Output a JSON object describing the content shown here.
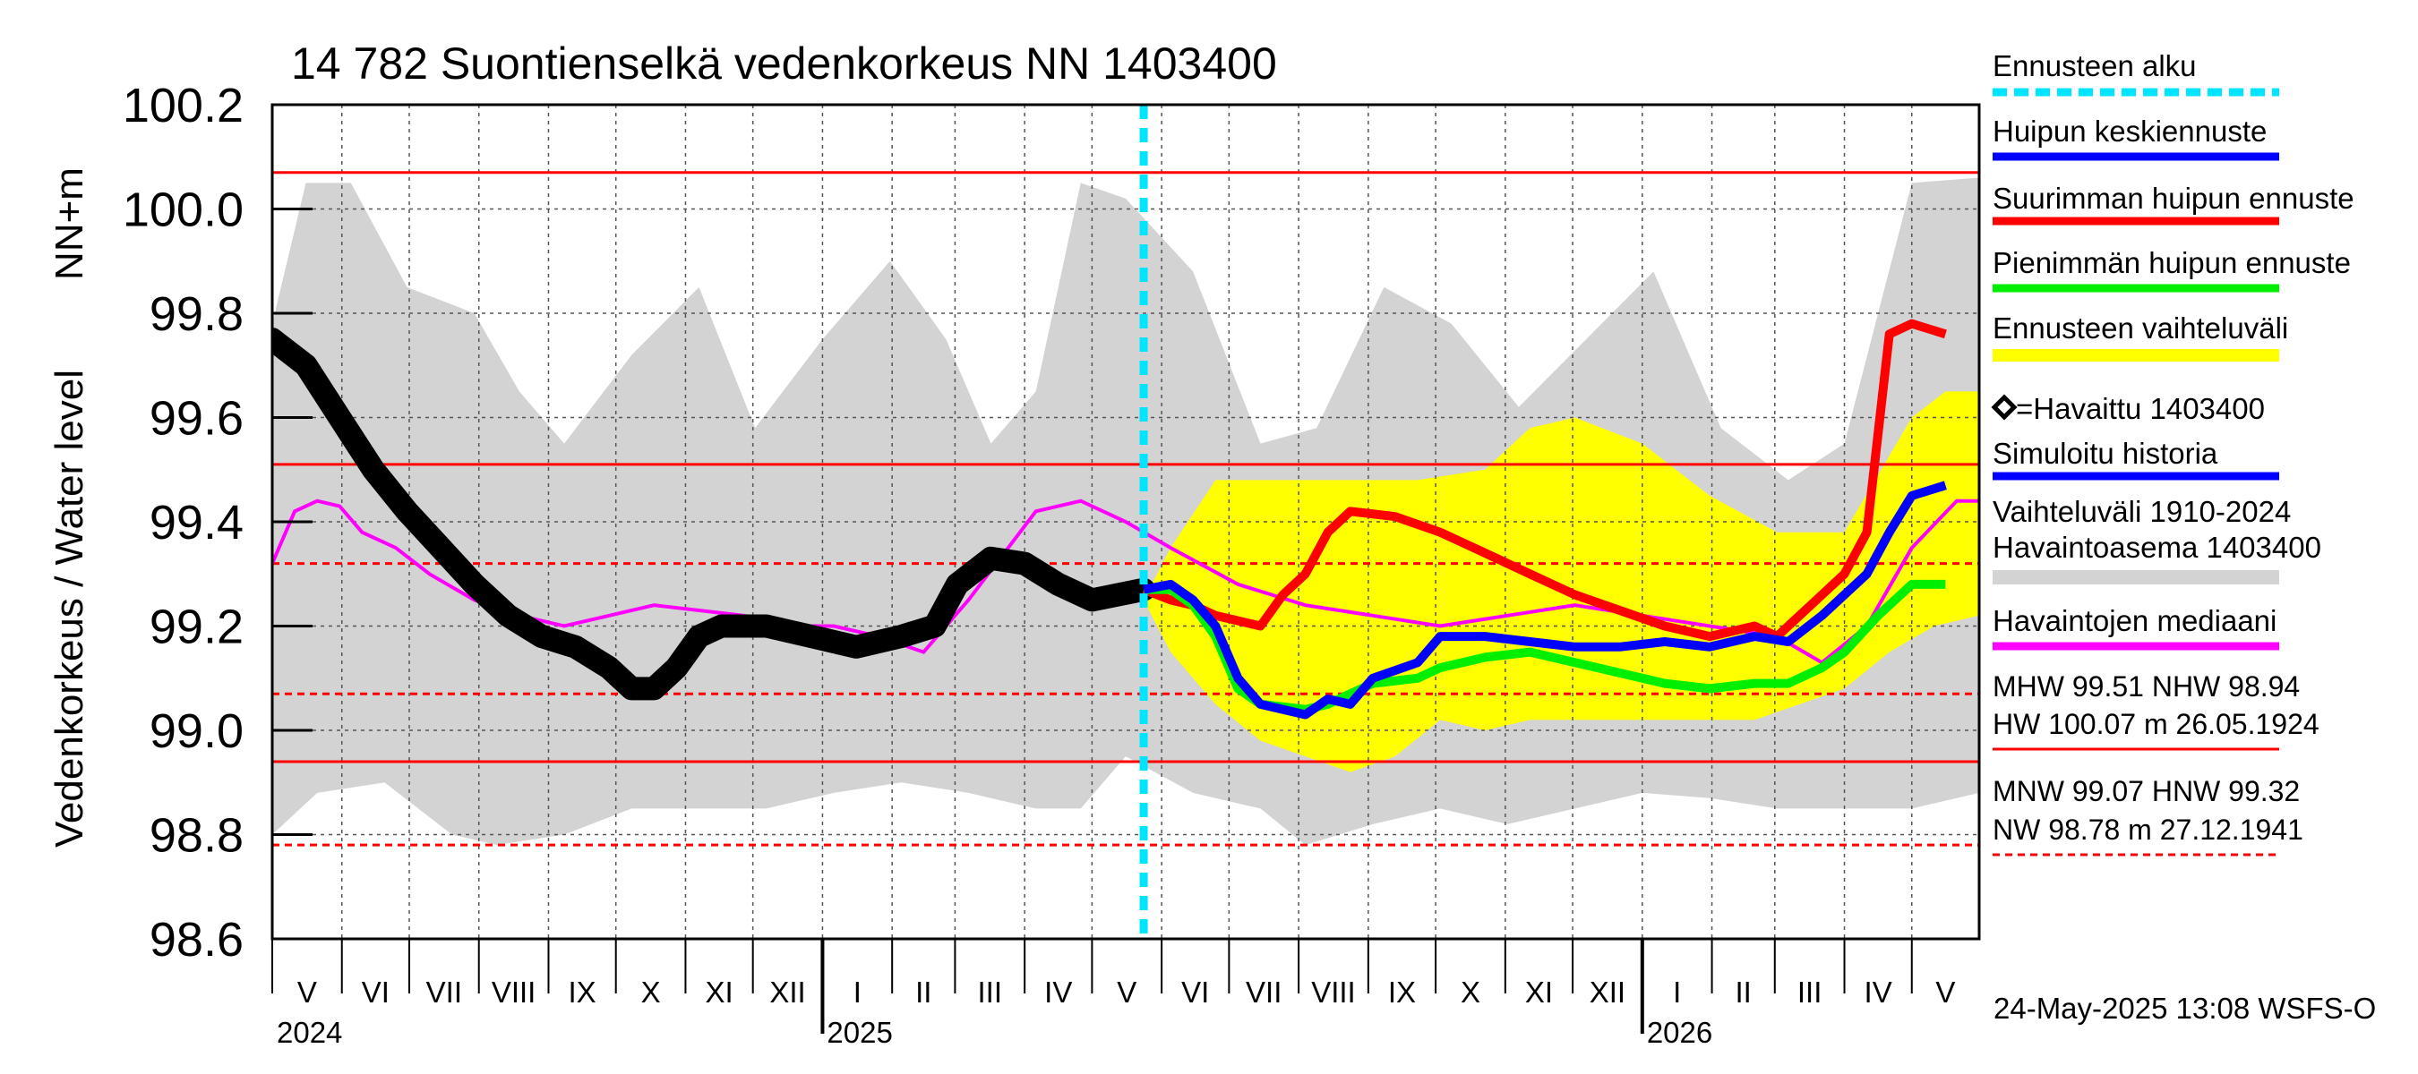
{
  "chart_data": {
    "type": "line",
    "title": "14 782 Suontienselkä vedenkorkeus NN 1403400",
    "ylabel_left": "Vedenkorkeus / Water level",
    "ylabel_unit": "NN+m",
    "ylim": [
      98.6,
      100.2
    ],
    "yticks": [
      "100.2",
      "100.0",
      "99.8",
      "99.6",
      "99.4",
      "99.2",
      "99.0",
      "98.8",
      "98.6"
    ],
    "ytick_values": [
      100.2,
      100.0,
      99.8,
      99.6,
      99.4,
      99.2,
      99.0,
      98.8,
      98.6
    ],
    "x_start": "2024-05-01",
    "x_end": "2026-05-31",
    "month_labels": [
      "V",
      "VI",
      "VII",
      "VIII",
      "IX",
      "X",
      "XI",
      "XII",
      "I",
      "II",
      "III",
      "IV",
      "V",
      "VI",
      "VII",
      "VIII",
      "IX",
      "X",
      "XI",
      "XII",
      "I",
      "II",
      "III",
      "IV",
      "V"
    ],
    "year_labels": [
      "2024",
      "2025",
      "2026"
    ],
    "forecast_start": "2025-05-24",
    "footer": "24-May-2025 13:08 WSFS-O",
    "reference_lines": {
      "HW": 100.07,
      "MHW": 99.51,
      "HNW": 99.32,
      "MNW": 99.07,
      "NHW": 98.94,
      "NW": 98.78
    },
    "legend": [
      {
        "label": "Ennusteen alku",
        "color": "#00e5ff",
        "style": "dash"
      },
      {
        "label": "Huipun keskiennuste",
        "color": "#0000ff"
      },
      {
        "label": "Suurimman huipun ennuste",
        "color": "#ff0000"
      },
      {
        "label": "Pienimmän huipun ennuste",
        "color": "#00ee00"
      },
      {
        "label": "Ennusteen vaihteluväli",
        "color": "#ffff00"
      },
      {
        "label": "=Havaittu 1403400",
        "color": "#000000",
        "style": "diamond"
      },
      {
        "label": "Simuloitu historia",
        "color": "#0000ff"
      },
      {
        "label": "Vaihteluväli 1910-2024",
        "label2": " Havaintoasema 1403400",
        "color": "#d3d3d3"
      },
      {
        "label": "Havaintojen mediaani",
        "color": "#ff00ff"
      }
    ],
    "stats_lines": [
      "MHW  99.51 NHW  98.94",
      "HW 100.07 m 26.05.1924",
      "MNW  99.07 HNW  99.32",
      "NW  98.78 m 27.12.1941"
    ],
    "series": {
      "range_upper": [
        [
          0,
          99.78
        ],
        [
          15,
          100.05
        ],
        [
          35,
          100.05
        ],
        [
          60,
          99.85
        ],
        [
          90,
          99.8
        ],
        [
          110,
          99.65
        ],
        [
          130,
          99.55
        ],
        [
          160,
          99.72
        ],
        [
          190,
          99.85
        ],
        [
          215,
          99.58
        ],
        [
          245,
          99.75
        ],
        [
          275,
          99.9
        ],
        [
          300,
          99.75
        ],
        [
          320,
          99.55
        ],
        [
          340,
          99.65
        ],
        [
          360,
          100.05
        ],
        [
          380,
          100.02
        ],
        [
          410,
          99.88
        ],
        [
          440,
          99.55
        ],
        [
          465,
          99.58
        ],
        [
          495,
          99.85
        ],
        [
          525,
          99.78
        ],
        [
          555,
          99.62
        ],
        [
          585,
          99.75
        ],
        [
          615,
          99.88
        ],
        [
          645,
          99.58
        ],
        [
          675,
          99.48
        ],
        [
          700,
          99.55
        ],
        [
          730,
          100.05
        ],
        [
          760,
          100.06
        ]
      ],
      "range_lower": [
        [
          0,
          98.8
        ],
        [
          20,
          98.88
        ],
        [
          50,
          98.9
        ],
        [
          80,
          98.8
        ],
        [
          100,
          98.78
        ],
        [
          130,
          98.8
        ],
        [
          160,
          98.85
        ],
        [
          190,
          98.85
        ],
        [
          220,
          98.85
        ],
        [
          250,
          98.88
        ],
        [
          280,
          98.9
        ],
        [
          310,
          98.88
        ],
        [
          340,
          98.85
        ],
        [
          360,
          98.85
        ],
        [
          380,
          98.95
        ],
        [
          410,
          98.88
        ],
        [
          440,
          98.85
        ],
        [
          460,
          98.78
        ],
        [
          490,
          98.82
        ],
        [
          520,
          98.85
        ],
        [
          550,
          98.82
        ],
        [
          580,
          98.85
        ],
        [
          610,
          98.88
        ],
        [
          640,
          98.87
        ],
        [
          670,
          98.85
        ],
        [
          700,
          98.85
        ],
        [
          730,
          98.85
        ],
        [
          760,
          98.88
        ]
      ],
      "forecast_upper": [
        [
          388,
          99.25
        ],
        [
          400,
          99.35
        ],
        [
          420,
          99.48
        ],
        [
          450,
          99.48
        ],
        [
          480,
          99.48
        ],
        [
          510,
          99.48
        ],
        [
          540,
          99.5
        ],
        [
          560,
          99.58
        ],
        [
          580,
          99.6
        ],
        [
          610,
          99.55
        ],
        [
          640,
          99.45
        ],
        [
          670,
          99.38
        ],
        [
          700,
          99.38
        ],
        [
          730,
          99.6
        ],
        [
          745,
          99.65
        ],
        [
          760,
          99.65
        ]
      ],
      "forecast_lower": [
        [
          388,
          99.25
        ],
        [
          400,
          99.15
        ],
        [
          420,
          99.05
        ],
        [
          440,
          98.98
        ],
        [
          460,
          98.95
        ],
        [
          480,
          98.92
        ],
        [
          500,
          98.95
        ],
        [
          520,
          99.02
        ],
        [
          540,
          99.0
        ],
        [
          560,
          99.02
        ],
        [
          580,
          99.02
        ],
        [
          600,
          99.02
        ],
        [
          620,
          99.02
        ],
        [
          640,
          99.02
        ],
        [
          660,
          99.02
        ],
        [
          680,
          99.05
        ],
        [
          700,
          99.08
        ],
        [
          720,
          99.15
        ],
        [
          740,
          99.2
        ],
        [
          760,
          99.22
        ]
      ],
      "median": [
        [
          0,
          99.32
        ],
        [
          10,
          99.42
        ],
        [
          20,
          99.44
        ],
        [
          30,
          99.43
        ],
        [
          40,
          99.38
        ],
        [
          55,
          99.35
        ],
        [
          70,
          99.3
        ],
        [
          90,
          99.25
        ],
        [
          110,
          99.22
        ],
        [
          130,
          99.2
        ],
        [
          150,
          99.22
        ],
        [
          170,
          99.24
        ],
        [
          190,
          99.23
        ],
        [
          210,
          99.22
        ],
        [
          230,
          99.2
        ],
        [
          250,
          99.2
        ],
        [
          270,
          99.18
        ],
        [
          290,
          99.15
        ],
        [
          310,
          99.25
        ],
        [
          340,
          99.42
        ],
        [
          360,
          99.44
        ],
        [
          380,
          99.4
        ],
        [
          400,
          99.35
        ],
        [
          430,
          99.28
        ],
        [
          460,
          99.24
        ],
        [
          490,
          99.22
        ],
        [
          520,
          99.2
        ],
        [
          550,
          99.22
        ],
        [
          580,
          99.24
        ],
        [
          610,
          99.22
        ],
        [
          640,
          99.2
        ],
        [
          670,
          99.18
        ],
        [
          690,
          99.13
        ],
        [
          710,
          99.2
        ],
        [
          730,
          99.35
        ],
        [
          750,
          99.44
        ],
        [
          760,
          99.44
        ]
      ],
      "observed": [
        [
          0,
          99.75
        ],
        [
          15,
          99.7
        ],
        [
          30,
          99.6
        ],
        [
          45,
          99.5
        ],
        [
          60,
          99.42
        ],
        [
          75,
          99.35
        ],
        [
          90,
          99.28
        ],
        [
          105,
          99.22
        ],
        [
          120,
          99.18
        ],
        [
          135,
          99.16
        ],
        [
          150,
          99.12
        ],
        [
          160,
          99.08
        ],
        [
          170,
          99.08
        ],
        [
          180,
          99.12
        ],
        [
          190,
          99.18
        ],
        [
          200,
          99.2
        ],
        [
          220,
          99.2
        ],
        [
          240,
          99.18
        ],
        [
          260,
          99.16
        ],
        [
          280,
          99.18
        ],
        [
          295,
          99.2
        ],
        [
          305,
          99.28
        ],
        [
          320,
          99.33
        ],
        [
          335,
          99.32
        ],
        [
          350,
          99.28
        ],
        [
          365,
          99.25
        ],
        [
          388,
          99.27
        ]
      ],
      "forecast_max": [
        [
          388,
          99.27
        ],
        [
          400,
          99.25
        ],
        [
          410,
          99.24
        ],
        [
          420,
          99.22
        ],
        [
          440,
          99.2
        ],
        [
          450,
          99.26
        ],
        [
          460,
          99.3
        ],
        [
          470,
          99.38
        ],
        [
          480,
          99.42
        ],
        [
          500,
          99.41
        ],
        [
          520,
          99.38
        ],
        [
          540,
          99.34
        ],
        [
          560,
          99.3
        ],
        [
          580,
          99.26
        ],
        [
          600,
          99.23
        ],
        [
          620,
          99.2
        ],
        [
          640,
          99.18
        ],
        [
          660,
          99.2
        ],
        [
          670,
          99.18
        ],
        [
          680,
          99.22
        ],
        [
          700,
          99.3
        ],
        [
          710,
          99.38
        ],
        [
          720,
          99.76
        ],
        [
          730,
          99.78
        ],
        [
          745,
          99.76
        ]
      ],
      "forecast_mean": [
        [
          388,
          99.27
        ],
        [
          400,
          99.28
        ],
        [
          410,
          99.25
        ],
        [
          420,
          99.2
        ],
        [
          430,
          99.1
        ],
        [
          440,
          99.05
        ],
        [
          460,
          99.03
        ],
        [
          470,
          99.06
        ],
        [
          480,
          99.05
        ],
        [
          490,
          99.1
        ],
        [
          510,
          99.13
        ],
        [
          520,
          99.18
        ],
        [
          540,
          99.18
        ],
        [
          560,
          99.17
        ],
        [
          580,
          99.16
        ],
        [
          600,
          99.16
        ],
        [
          620,
          99.17
        ],
        [
          640,
          99.16
        ],
        [
          660,
          99.18
        ],
        [
          675,
          99.17
        ],
        [
          690,
          99.22
        ],
        [
          710,
          99.3
        ],
        [
          720,
          99.38
        ],
        [
          730,
          99.45
        ],
        [
          745,
          99.47
        ]
      ],
      "forecast_min": [
        [
          388,
          99.27
        ],
        [
          400,
          99.27
        ],
        [
          410,
          99.24
        ],
        [
          420,
          99.18
        ],
        [
          430,
          99.08
        ],
        [
          440,
          99.05
        ],
        [
          460,
          99.04
        ],
        [
          470,
          99.05
        ],
        [
          480,
          99.07
        ],
        [
          490,
          99.09
        ],
        [
          510,
          99.1
        ],
        [
          520,
          99.12
        ],
        [
          540,
          99.14
        ],
        [
          560,
          99.15
        ],
        [
          580,
          99.13
        ],
        [
          600,
          99.11
        ],
        [
          620,
          99.09
        ],
        [
          640,
          99.08
        ],
        [
          660,
          99.09
        ],
        [
          675,
          99.09
        ],
        [
          690,
          99.12
        ],
        [
          700,
          99.15
        ],
        [
          715,
          99.22
        ],
        [
          730,
          99.28
        ],
        [
          745,
          99.28
        ]
      ]
    }
  }
}
